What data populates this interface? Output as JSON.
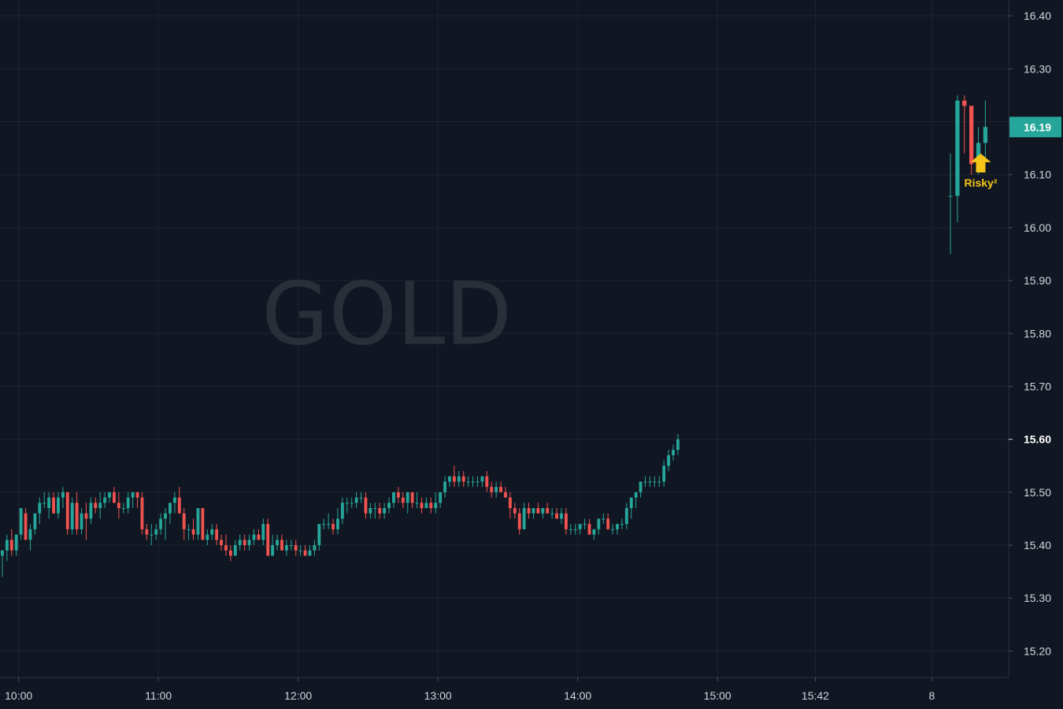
{
  "chart_data": {
    "type": "candlestick",
    "symbol_watermark": "GOLD",
    "colors": {
      "background": "#111722",
      "grid": "#1e2430",
      "up": "#26a69a",
      "down": "#ef5350",
      "axis_text": "#d1d4dc",
      "watermark": "#2a2e39",
      "signal": "#f5c518"
    },
    "y_axis": {
      "ylim": [
        15.15,
        16.43
      ],
      "ticks": [
        "16.40",
        "16.30",
        "16.20",
        "16.10",
        "16.00",
        "15.90",
        "15.80",
        "15.70",
        "15.60",
        "15.50",
        "15.40",
        "15.30",
        "15.20"
      ]
    },
    "x_axis": {
      "labels": [
        "10:00",
        "11:00",
        "12:00",
        "13:00",
        "14:00",
        "15:00",
        "15:42",
        "8"
      ],
      "label_minutes": [
        0,
        60,
        120,
        180,
        240,
        300,
        342,
        392
      ],
      "x_range_minutes": [
        -8,
        425
      ]
    },
    "price_badges": [
      {
        "label": "16.19",
        "value": 16.19,
        "style": "filled"
      },
      {
        "label": "15.60",
        "value": 15.6,
        "style": "plain"
      }
    ],
    "signal": {
      "text": "Risky²",
      "minute": 413,
      "price_top": 16.14
    },
    "candles_session1": {
      "start_minute": -7,
      "step_minutes": 2,
      "ohlc": [
        [
          15.38,
          15.39,
          15.34,
          15.39
        ],
        [
          15.39,
          15.42,
          15.37,
          15.41
        ],
        [
          15.41,
          15.43,
          15.38,
          15.39
        ],
        [
          15.39,
          15.42,
          15.38,
          15.42
        ],
        [
          15.42,
          15.47,
          15.41,
          15.47
        ],
        [
          15.46,
          15.47,
          15.41,
          15.41
        ],
        [
          15.41,
          15.44,
          15.39,
          15.43
        ],
        [
          15.43,
          15.46,
          15.42,
          15.46
        ],
        [
          15.46,
          15.49,
          15.44,
          15.48
        ],
        [
          15.48,
          15.5,
          15.47,
          15.48
        ],
        [
          15.47,
          15.5,
          15.45,
          15.49
        ],
        [
          15.49,
          15.5,
          15.46,
          15.46
        ],
        [
          15.46,
          15.5,
          15.45,
          15.49
        ],
        [
          15.49,
          15.51,
          15.47,
          15.5
        ],
        [
          15.5,
          15.5,
          15.42,
          15.43
        ],
        [
          15.43,
          15.49,
          15.42,
          15.48
        ],
        [
          15.48,
          15.5,
          15.42,
          15.43
        ],
        [
          15.43,
          15.47,
          15.42,
          15.46
        ],
        [
          15.46,
          15.48,
          15.41,
          15.45
        ],
        [
          15.45,
          15.49,
          15.44,
          15.48
        ],
        [
          15.48,
          15.49,
          15.46,
          15.47
        ],
        [
          15.47,
          15.5,
          15.45,
          15.48
        ],
        [
          15.48,
          15.5,
          15.47,
          15.49
        ],
        [
          15.49,
          15.5,
          15.48,
          15.5
        ],
        [
          15.5,
          15.51,
          15.48,
          15.48
        ],
        [
          15.48,
          15.5,
          15.45,
          15.47
        ],
        [
          15.47,
          15.48,
          15.46,
          15.47
        ],
        [
          15.47,
          15.5,
          15.46,
          15.49
        ],
        [
          15.49,
          15.5,
          15.47,
          15.5
        ],
        [
          15.5,
          15.5,
          15.47,
          15.49
        ],
        [
          15.49,
          15.5,
          15.42,
          15.43
        ],
        [
          15.43,
          15.44,
          15.41,
          15.42
        ],
        [
          15.42,
          15.44,
          15.4,
          15.42
        ],
        [
          15.42,
          15.44,
          15.41,
          15.43
        ],
        [
          15.43,
          15.46,
          15.42,
          15.45
        ],
        [
          15.45,
          15.47,
          15.41,
          15.46
        ],
        [
          15.46,
          15.48,
          15.44,
          15.48
        ],
        [
          15.48,
          15.5,
          15.46,
          15.49
        ],
        [
          15.49,
          15.51,
          15.46,
          15.46
        ],
        [
          15.46,
          15.47,
          15.41,
          15.43
        ],
        [
          15.43,
          15.44,
          15.41,
          15.43
        ],
        [
          15.43,
          15.45,
          15.41,
          15.42
        ],
        [
          15.42,
          15.47,
          15.41,
          15.47
        ],
        [
          15.47,
          15.47,
          15.41,
          15.41
        ],
        [
          15.41,
          15.43,
          15.4,
          15.42
        ],
        [
          15.42,
          15.44,
          15.41,
          15.43
        ],
        [
          15.43,
          15.44,
          15.4,
          15.41
        ],
        [
          15.41,
          15.42,
          15.39,
          15.4
        ],
        [
          15.4,
          15.42,
          15.38,
          15.39
        ],
        [
          15.39,
          15.4,
          15.37,
          15.38
        ],
        [
          15.38,
          15.41,
          15.38,
          15.4
        ],
        [
          15.4,
          15.42,
          15.39,
          15.41
        ],
        [
          15.41,
          15.42,
          15.39,
          15.4
        ],
        [
          15.4,
          15.42,
          15.39,
          15.41
        ],
        [
          15.41,
          15.43,
          15.4,
          15.42
        ],
        [
          15.42,
          15.43,
          15.41,
          15.41
        ],
        [
          15.41,
          15.45,
          15.4,
          15.44
        ],
        [
          15.44,
          15.45,
          15.38,
          15.38
        ],
        [
          15.38,
          15.42,
          15.38,
          15.4
        ],
        [
          15.4,
          15.42,
          15.39,
          15.41
        ],
        [
          15.41,
          15.42,
          15.39,
          15.39
        ],
        [
          15.39,
          15.41,
          15.38,
          15.4
        ],
        [
          15.4,
          15.41,
          15.39,
          15.4
        ],
        [
          15.4,
          15.41,
          15.38,
          15.39
        ],
        [
          15.39,
          15.4,
          15.38,
          15.39
        ],
        [
          15.39,
          15.4,
          15.38,
          15.38
        ],
        [
          15.38,
          15.4,
          15.38,
          15.39
        ],
        [
          15.39,
          15.41,
          15.38,
          15.4
        ],
        [
          15.4,
          15.44,
          15.39,
          15.44
        ],
        [
          15.44,
          15.45,
          15.43,
          15.44
        ],
        [
          15.44,
          15.46,
          15.43,
          15.44
        ],
        [
          15.44,
          15.45,
          15.42,
          15.43
        ],
        [
          15.43,
          15.47,
          15.42,
          15.45
        ],
        [
          15.45,
          15.49,
          15.44,
          15.48
        ],
        [
          15.48,
          15.49,
          15.46,
          15.48
        ],
        [
          15.48,
          15.49,
          15.47,
          15.48
        ],
        [
          15.48,
          15.5,
          15.47,
          15.49
        ],
        [
          15.49,
          15.5,
          15.48,
          15.49
        ],
        [
          15.49,
          15.5,
          15.45,
          15.46
        ],
        [
          15.46,
          15.48,
          15.45,
          15.47
        ],
        [
          15.47,
          15.48,
          15.45,
          15.47
        ],
        [
          15.47,
          15.48,
          15.45,
          15.46
        ],
        [
          15.46,
          15.48,
          15.45,
          15.47
        ],
        [
          15.47,
          15.49,
          15.46,
          15.48
        ],
        [
          15.48,
          15.5,
          15.47,
          15.5
        ],
        [
          15.5,
          15.51,
          15.48,
          15.49
        ],
        [
          15.49,
          15.5,
          15.47,
          15.48
        ],
        [
          15.48,
          15.5,
          15.46,
          15.5
        ],
        [
          15.5,
          15.5,
          15.47,
          15.48
        ],
        [
          15.48,
          15.5,
          15.47,
          15.48
        ],
        [
          15.48,
          15.49,
          15.46,
          15.47
        ],
        [
          15.47,
          15.49,
          15.47,
          15.48
        ],
        [
          15.48,
          15.49,
          15.46,
          15.47
        ],
        [
          15.47,
          15.5,
          15.46,
          15.48
        ],
        [
          15.48,
          15.5,
          15.47,
          15.5
        ],
        [
          15.5,
          15.53,
          15.49,
          15.52
        ],
        [
          15.52,
          15.53,
          15.51,
          15.53
        ],
        [
          15.53,
          15.55,
          15.51,
          15.52
        ],
        [
          15.52,
          15.54,
          15.51,
          15.53
        ],
        [
          15.53,
          15.54,
          15.51,
          15.52
        ],
        [
          15.52,
          15.53,
          15.51,
          15.52
        ],
        [
          15.52,
          15.53,
          15.51,
          15.52
        ],
        [
          15.52,
          15.53,
          15.51,
          15.52
        ],
        [
          15.52,
          15.53,
          15.51,
          15.53
        ],
        [
          15.53,
          15.54,
          15.5,
          15.51
        ],
        [
          15.51,
          15.52,
          15.49,
          15.5
        ],
        [
          15.5,
          15.52,
          15.49,
          15.51
        ],
        [
          15.51,
          15.52,
          15.5,
          15.5
        ],
        [
          15.5,
          15.51,
          15.49,
          15.49
        ],
        [
          15.49,
          15.5,
          15.45,
          15.47
        ],
        [
          15.47,
          15.48,
          15.45,
          15.46
        ],
        [
          15.46,
          15.47,
          15.42,
          15.43
        ],
        [
          15.43,
          15.48,
          15.43,
          15.47
        ],
        [
          15.47,
          15.48,
          15.45,
          15.46
        ],
        [
          15.46,
          15.47,
          15.45,
          15.47
        ],
        [
          15.47,
          15.48,
          15.46,
          15.46
        ],
        [
          15.46,
          15.47,
          15.45,
          15.47
        ],
        [
          15.47,
          15.48,
          15.46,
          15.46
        ],
        [
          15.46,
          15.47,
          15.45,
          15.46
        ],
        [
          15.46,
          15.47,
          15.45,
          15.45
        ],
        [
          15.45,
          15.47,
          15.44,
          15.46
        ],
        [
          15.46,
          15.47,
          15.42,
          15.43
        ],
        [
          15.43,
          15.44,
          15.42,
          15.43
        ],
        [
          15.43,
          15.44,
          15.42,
          15.43
        ],
        [
          15.43,
          15.44,
          15.42,
          15.44
        ],
        [
          15.44,
          15.45,
          15.43,
          15.44
        ],
        [
          15.44,
          15.45,
          15.42,
          15.42
        ],
        [
          15.42,
          15.43,
          15.41,
          15.43
        ],
        [
          15.43,
          15.45,
          15.42,
          15.45
        ],
        [
          15.45,
          15.46,
          15.44,
          15.45
        ],
        [
          15.45,
          15.46,
          15.43,
          15.43
        ],
        [
          15.43,
          15.44,
          15.42,
          15.43
        ],
        [
          15.43,
          15.44,
          15.42,
          15.44
        ],
        [
          15.44,
          15.45,
          15.43,
          15.44
        ],
        [
          15.44,
          15.48,
          15.43,
          15.47
        ],
        [
          15.47,
          15.49,
          15.45,
          15.49
        ],
        [
          15.49,
          15.5,
          15.47,
          15.5
        ],
        [
          15.5,
          15.52,
          15.49,
          15.52
        ],
        [
          15.52,
          15.53,
          15.51,
          15.52
        ],
        [
          15.52,
          15.53,
          15.51,
          15.52
        ],
        [
          15.52,
          15.53,
          15.51,
          15.52
        ],
        [
          15.52,
          15.53,
          15.51,
          15.52
        ],
        [
          15.52,
          15.56,
          15.51,
          15.55
        ],
        [
          15.55,
          15.58,
          15.54,
          15.57
        ],
        [
          15.57,
          15.59,
          15.56,
          15.58
        ],
        [
          15.58,
          15.61,
          15.57,
          15.6
        ]
      ]
    },
    "candles_session2": {
      "start_minute": 400,
      "step_minutes": 3,
      "ohlc": [
        [
          16.06,
          16.14,
          15.95,
          16.06
        ],
        [
          16.06,
          16.25,
          16.01,
          16.24
        ],
        [
          16.24,
          16.25,
          16.14,
          16.23
        ],
        [
          16.23,
          16.23,
          16.1,
          16.12
        ],
        [
          16.12,
          16.19,
          16.1,
          16.16
        ],
        [
          16.16,
          16.24,
          16.13,
          16.19
        ]
      ]
    }
  }
}
